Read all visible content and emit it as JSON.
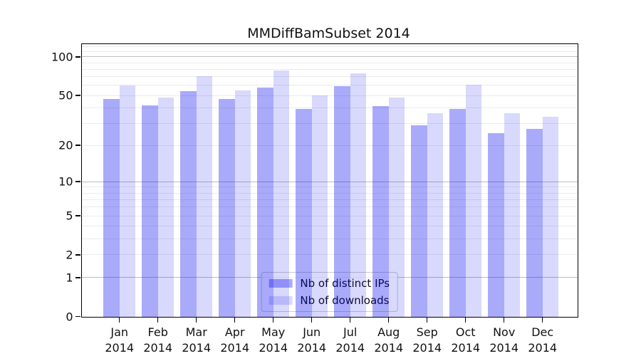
{
  "chart_data": {
    "type": "bar",
    "title": "MMDiffBamSubset 2014",
    "categories": [
      "Jan 2014",
      "Feb 2014",
      "Mar 2014",
      "Apr 2014",
      "May 2014",
      "Jun 2014",
      "Jul 2014",
      "Aug 2014",
      "Sep 2014",
      "Oct 2014",
      "Nov 2014",
      "Dec 2014"
    ],
    "x_tick_line1": [
      "Jan",
      "Feb",
      "Mar",
      "Apr",
      "May",
      "Jun",
      "Jul",
      "Aug",
      "Sep",
      "Oct",
      "Nov",
      "Dec"
    ],
    "x_tick_line2": "2014",
    "series": [
      {
        "name": "Nb of distinct IPs",
        "values": [
          47,
          42,
          54,
          47,
          58,
          39,
          59,
          41,
          29,
          39,
          25,
          27
        ],
        "bar_color": "rgba(0,0,240,0.335)",
        "swatch_hex": "#a9a9f6"
      },
      {
        "name": "Nb of downloads",
        "values": [
          60,
          48,
          71,
          55,
          79,
          50,
          75,
          48,
          36,
          61,
          36,
          34
        ],
        "bar_color": "rgba(0,0,240,0.148)",
        "swatch_hex": "#dadaf9"
      }
    ],
    "y_ticks": [
      0,
      1,
      2,
      5,
      10,
      20,
      50,
      100
    ],
    "y_major_gridlines": [
      1,
      10,
      100
    ],
    "y_minor_gridlines": [
      2,
      3,
      4,
      5,
      6,
      7,
      8,
      9,
      20,
      30,
      40,
      50,
      60,
      70,
      80,
      90,
      110,
      120
    ],
    "y_scale": "log10(1+y)",
    "ylim": [
      0,
      126
    ],
    "grid": "on",
    "legend_position": "lower center",
    "colors": {
      "axis": "#000000",
      "major_grid": "#bdbdbd",
      "minor_grid": "#ebebeb",
      "text": "#111111"
    }
  }
}
